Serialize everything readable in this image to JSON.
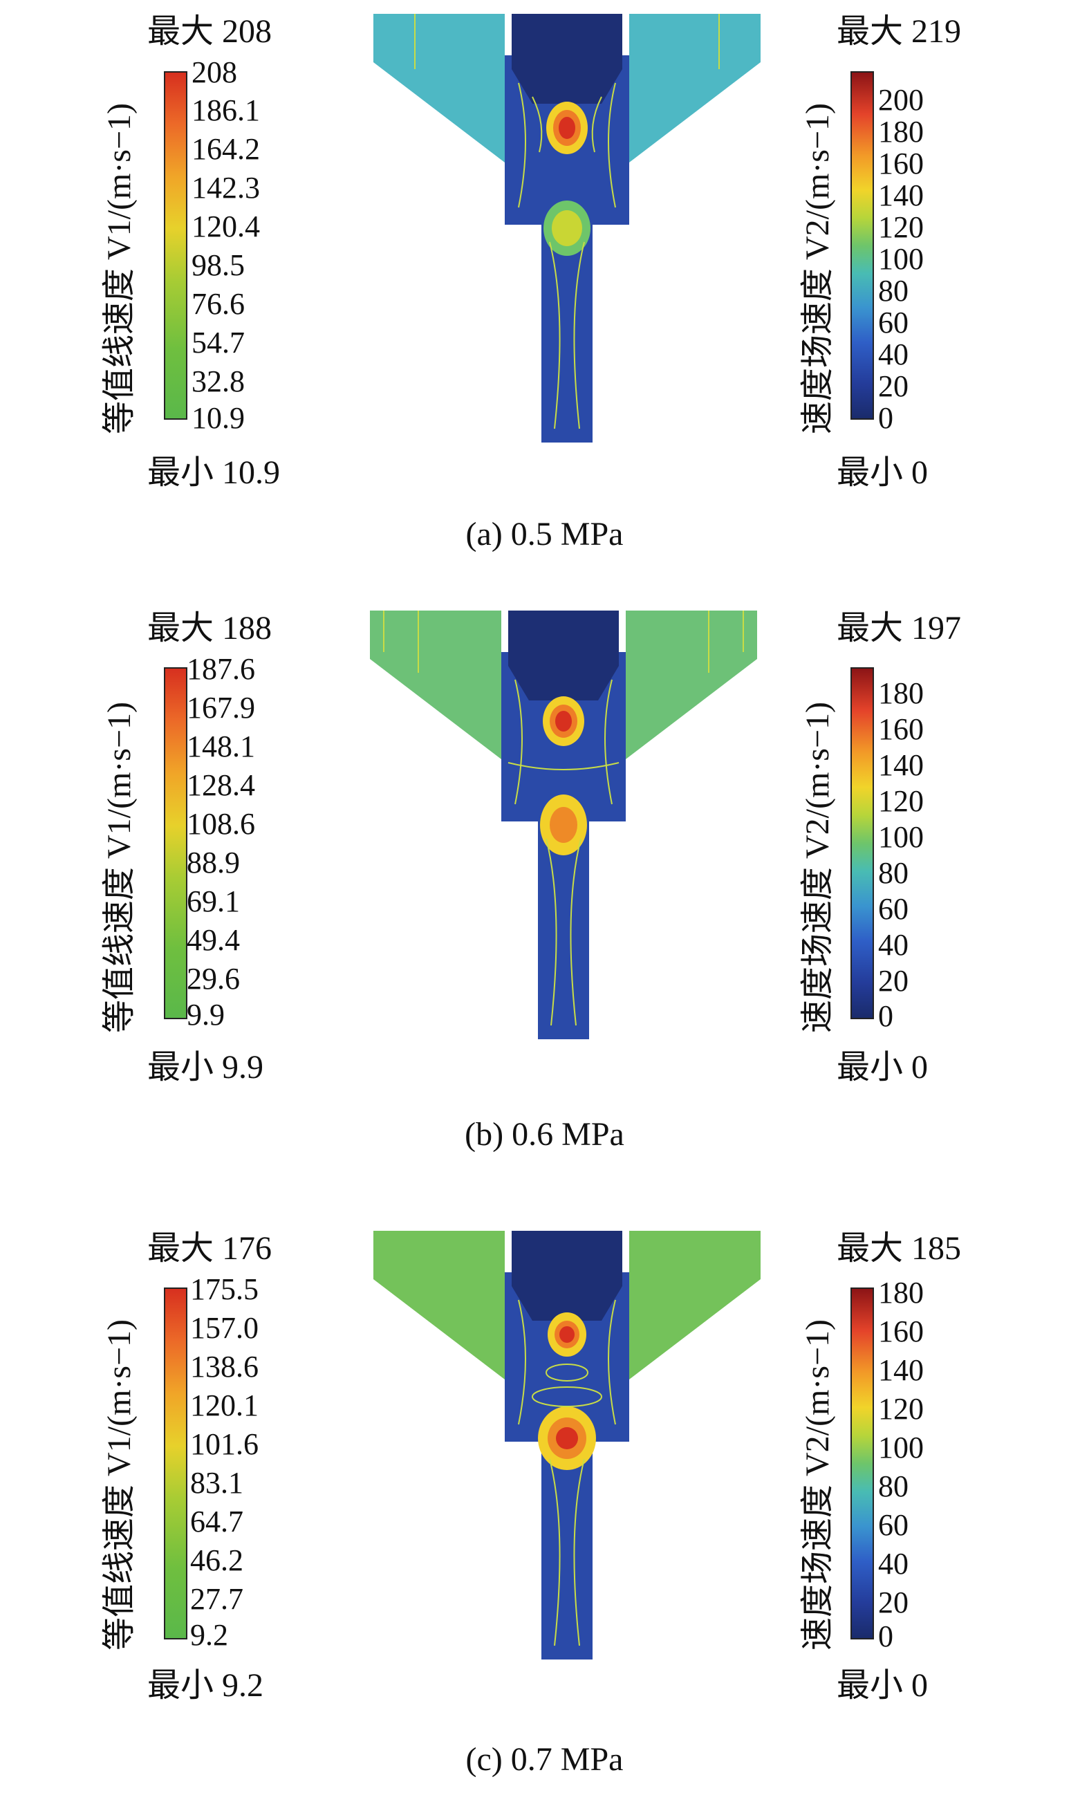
{
  "panels": [
    {
      "caption": "(a) 0.5 MPa",
      "left_legend": {
        "max_label": "最大 208",
        "min_label": "最小 10.9",
        "title": "等值线速度 V1/(m·s−1)",
        "ticks": [
          "208",
          "186.1",
          "164.2",
          "142.3",
          "120.4",
          "98.5",
          "76.6",
          "54.7",
          "32.8",
          "10.9"
        ]
      },
      "right_legend": {
        "max_label": "最大 219",
        "min_label": "最小 0",
        "title": "速度场速度 V2/(m·s−1)",
        "ticks": [
          "200",
          "180",
          "160",
          "140",
          "120",
          "100",
          "80",
          "60",
          "40",
          "20",
          "0"
        ]
      }
    },
    {
      "caption": "(b) 0.6 MPa",
      "left_legend": {
        "max_label": "最大 188",
        "min_label": "最小 9.9",
        "title": "等值线速度 V1/(m·s−1)",
        "ticks": [
          "187.6",
          "167.9",
          "148.1",
          "128.4",
          "108.6",
          "88.9",
          "69.1",
          "49.4",
          "29.6",
          "9.9"
        ]
      },
      "right_legend": {
        "max_label": "最大 197",
        "min_label": "最小 0",
        "title": "速度场速度 V2/(m·s−1)",
        "ticks": [
          "180",
          "160",
          "140",
          "120",
          "100",
          "80",
          "60",
          "40",
          "20",
          "0"
        ]
      }
    },
    {
      "caption": "(c) 0.7 MPa",
      "left_legend": {
        "max_label": "最大 176",
        "min_label": "最小 9.2",
        "title": "等值线速度 V1/(m·s−1)",
        "ticks": [
          "175.5",
          "157.0",
          "138.6",
          "120.1",
          "101.6",
          "83.1",
          "64.7",
          "46.2",
          "27.7",
          "9.2"
        ]
      },
      "right_legend": {
        "max_label": "最大 185",
        "min_label": "最小 0",
        "title": "速度场速度 V2/(m·s−1)",
        "ticks": [
          "180",
          "160",
          "140",
          "120",
          "100",
          "80",
          "60",
          "40",
          "20",
          "0"
        ]
      }
    }
  ],
  "colors": {
    "wing_a": "#4eb8c4",
    "wing_b": "#6dc177",
    "wing_c": "#74c25a",
    "body_dark": "#1d2f74",
    "core_blue": "#2f58c2",
    "hot": "#d7301f",
    "contour": "#c8dc46"
  }
}
